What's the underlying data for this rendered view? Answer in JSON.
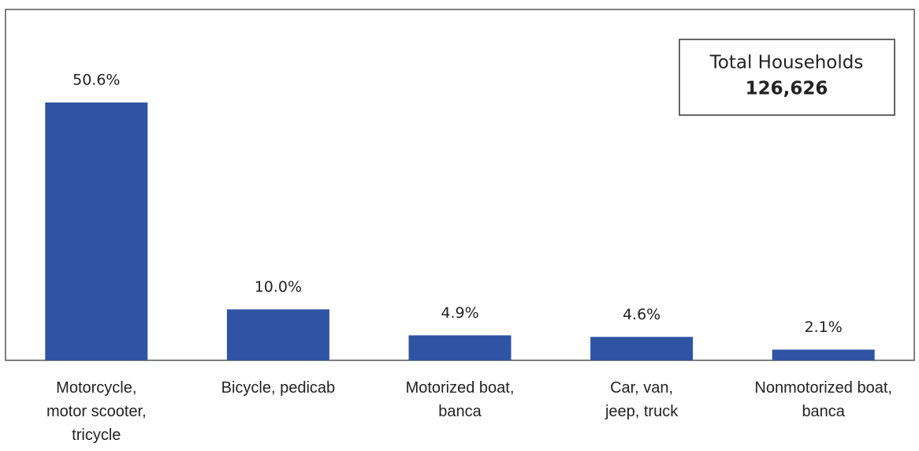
{
  "chart_data": {
    "type": "bar",
    "categories": [
      "Motorcycle,\nmotor scooter,\ntricycle",
      "Bicycle, pedicab",
      "Motorized boat,\nbanca",
      "Car, van,\njeep, truck",
      "Nonmotorized boat,\nbanca"
    ],
    "values": [
      50.6,
      10.0,
      4.9,
      4.6,
      2.1
    ],
    "value_labels": [
      "50.6%",
      "10.0%",
      "4.9%",
      "4.6%",
      "2.1%"
    ],
    "color": "#2f54a3",
    "annotation": {
      "title": "Total Households",
      "value": "126,626"
    }
  }
}
